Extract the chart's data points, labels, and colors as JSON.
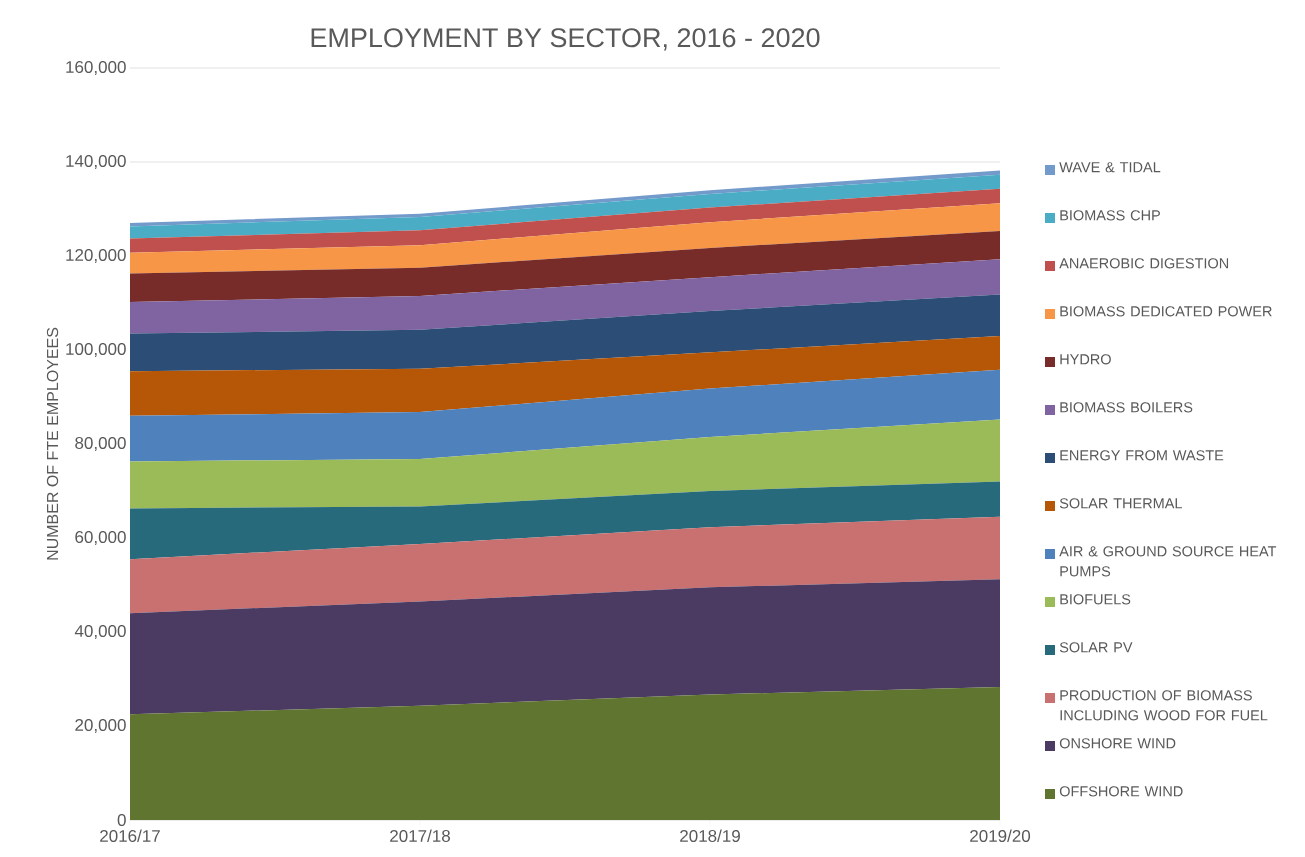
{
  "chart_data": {
    "type": "area",
    "stacked": true,
    "title": "EMPLOYMENT BY SECTOR, 2016 - 2020",
    "ylabel": "NUMBER OF FTE EMPLOYEES",
    "categories": [
      "2016/17",
      "2017/18",
      "2018/19",
      "2019/20"
    ],
    "ylim": [
      0,
      160000
    ],
    "yticks": [
      0,
      {
        "value": 20000,
        "label": "20,000"
      },
      {
        "value": 40000,
        "label": "40,000"
      },
      {
        "value": 60000,
        "label": "60,000"
      },
      {
        "value": 80000,
        "label": "80,000"
      },
      {
        "value": 100000,
        "label": "100,000"
      },
      {
        "value": 120000,
        "label": "120,000"
      },
      {
        "value": 140000,
        "label": "140,000"
      },
      {
        "value": 160000,
        "label": "160,000"
      }
    ],
    "grid": "y",
    "legend": "right",
    "series": [
      {
        "name": "OFFSHORE WIND",
        "color": "#5f7530",
        "values": [
          22500,
          24300,
          26700,
          28300
        ]
      },
      {
        "name": "ONSHORE WIND",
        "color": "#4b3a62",
        "values": [
          21500,
          22200,
          22800,
          22900
        ]
      },
      {
        "name": "PRODUCTION OF BIOMASS INCLUDING WOOD FOR FUEL",
        "color": "#c97070",
        "values": [
          11500,
          12200,
          12800,
          13300
        ]
      },
      {
        "name": "SOLAR PV",
        "color": "#276a7c",
        "values": [
          10800,
          8000,
          7700,
          7500
        ]
      },
      {
        "name": "BIOFUELS",
        "color": "#9bbb59",
        "values": [
          10000,
          10100,
          11500,
          13200
        ]
      },
      {
        "name": "AIR & GROUND SOURCE HEAT PUMPS",
        "color": "#4f81bd",
        "values": [
          9700,
          10000,
          10300,
          10600
        ]
      },
      {
        "name": "SOLAR THERMAL",
        "color": "#b65708",
        "values": [
          9500,
          9200,
          7700,
          7200
        ]
      },
      {
        "name": "ENERGY FROM WASTE",
        "color": "#2c4d75",
        "values": [
          8000,
          8300,
          8800,
          8800
        ]
      },
      {
        "name": "BIOMASS BOILERS",
        "color": "#8064a2",
        "values": [
          6700,
          7200,
          7200,
          7500
        ]
      },
      {
        "name": "HYDRO",
        "color": "#772c2a",
        "values": [
          6100,
          6000,
          6200,
          6000
        ]
      },
      {
        "name": "BIOMASS DEDICATED POWER",
        "color": "#f79646",
        "values": [
          4400,
          4800,
          5500,
          5900
        ]
      },
      {
        "name": "ANAEROBIC DIGESTION",
        "color": "#c0504d",
        "values": [
          3000,
          3200,
          3100,
          3100
        ]
      },
      {
        "name": "BIOMASS CHP",
        "color": "#4bacc6",
        "values": [
          2600,
          2800,
          2900,
          3000
        ]
      },
      {
        "name": "WAVE & TIDAL",
        "color": "#729aca",
        "values": [
          700,
          700,
          800,
          900
        ]
      }
    ]
  }
}
